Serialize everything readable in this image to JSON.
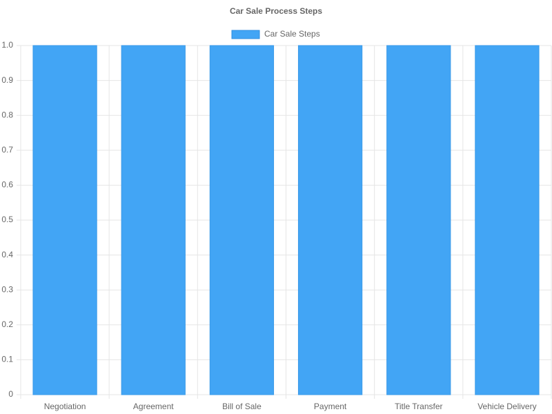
{
  "chart_data": {
    "type": "bar",
    "title": "Car Sale Process Steps",
    "categories": [
      "Negotiation",
      "Agreement",
      "Bill of Sale",
      "Payment",
      "Title Transfer",
      "Vehicle Delivery"
    ],
    "series": [
      {
        "name": "Car Sale Steps",
        "color": "#42a5f5",
        "values": [
          1,
          1,
          1,
          1,
          1,
          1
        ]
      }
    ],
    "ylim": [
      0,
      1
    ],
    "yticks": [
      0,
      0.1,
      0.2,
      0.3,
      0.4,
      0.5,
      0.6,
      0.7,
      0.8,
      0.9,
      {
        "value": 1,
        "label": "1.0"
      }
    ],
    "grid": true,
    "legend": "top"
  }
}
